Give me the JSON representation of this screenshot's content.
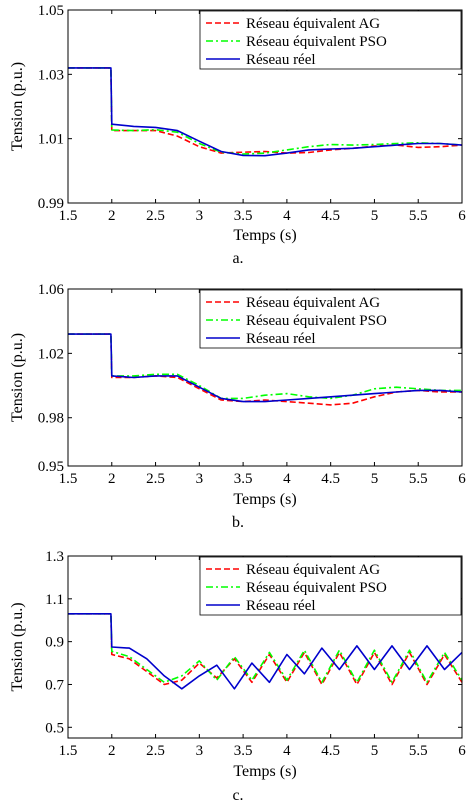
{
  "panels": [
    {
      "caption": "a.",
      "chart_data": {
        "type": "line",
        "xlabel": "Temps (s)",
        "ylabel": "Tension (p.u.)",
        "xlim": [
          1.5,
          6
        ],
        "ylim": [
          0.99,
          1.05
        ],
        "xticks": [
          "1.5",
          "2",
          "2.5",
          "3",
          "3.5",
          "4",
          "4.5",
          "5",
          "5.5",
          "6"
        ],
        "yticks": [
          "0.99",
          "1.01",
          "1.03",
          "1.05"
        ],
        "legend_position": "top-right",
        "grid": false,
        "series": [
          {
            "name": "Réseau équivalent AG",
            "color": "#ff0000",
            "style": "dashed",
            "x": [
              1.5,
              1.99,
              2.0,
              2.25,
              2.5,
              2.75,
              3.0,
              3.25,
              3.5,
              3.75,
              4.0,
              4.25,
              4.5,
              4.75,
              5.0,
              5.25,
              5.5,
              5.75,
              6.0
            ],
            "y": [
              1.032,
              1.032,
              1.0125,
              1.0125,
              1.0125,
              1.0108,
              1.0075,
              1.0055,
              1.0058,
              1.006,
              1.0055,
              1.0057,
              1.0065,
              1.007,
              1.0077,
              1.008,
              1.0073,
              1.0075,
              1.008
            ]
          },
          {
            "name": "Réseau équivalent PSO",
            "color": "#00ff00",
            "style": "dashdot",
            "x": [
              1.5,
              1.99,
              2.0,
              2.25,
              2.5,
              2.75,
              3.0,
              3.25,
              3.5,
              3.75,
              4.0,
              4.25,
              4.5,
              4.75,
              5.0,
              5.25,
              5.5,
              5.75,
              6.0
            ],
            "y": [
              1.032,
              1.032,
              1.0127,
              1.0125,
              1.0128,
              1.012,
              1.0085,
              1.0058,
              1.0052,
              1.0055,
              1.0065,
              1.0075,
              1.0082,
              1.008,
              1.0082,
              1.0085,
              1.0087,
              1.0085,
              1.008
            ]
          },
          {
            "name": "Réseau réel",
            "color": "#0000cc",
            "style": "solid",
            "x": [
              1.5,
              1.99,
              2.0,
              2.25,
              2.5,
              2.75,
              3.0,
              3.25,
              3.5,
              3.75,
              4.0,
              4.25,
              4.5,
              4.75,
              5.0,
              5.25,
              5.5,
              5.75,
              6.0
            ],
            "y": [
              1.032,
              1.032,
              1.0145,
              1.0138,
              1.0135,
              1.0125,
              1.0092,
              1.006,
              1.0048,
              1.0047,
              1.0055,
              1.0065,
              1.0068,
              1.007,
              1.0075,
              1.008,
              1.0085,
              1.0085,
              1.008
            ]
          }
        ]
      }
    },
    {
      "caption": "b.",
      "chart_data": {
        "type": "line",
        "xlabel": "Temps (s)",
        "ylabel": "Tension (p.u.)",
        "xlim": [
          1.5,
          6
        ],
        "ylim": [
          0.95,
          1.06
        ],
        "xticks": [
          "1.5",
          "2",
          "2.5",
          "3",
          "3.5",
          "4",
          "4.5",
          "5",
          "5.5",
          "6"
        ],
        "yticks": [
          "0.95",
          "0.98",
          "1.02",
          "1.06"
        ],
        "legend_position": "top-right",
        "grid": false,
        "series": [
          {
            "name": "Réseau équivalent AG",
            "color": "#ff0000",
            "style": "dashed",
            "x": [
              1.5,
              1.99,
              2.0,
              2.25,
              2.5,
              2.75,
              3.0,
              3.25,
              3.5,
              3.75,
              4.0,
              4.25,
              4.5,
              4.75,
              5.0,
              5.25,
              5.5,
              5.75,
              6.0
            ],
            "y": [
              1.032,
              1.032,
              1.005,
              1.005,
              1.006,
              1.005,
              0.998,
              0.991,
              0.99,
              0.991,
              0.99,
              0.989,
              0.988,
              0.989,
              0.993,
              0.996,
              0.997,
              0.996,
              0.996
            ]
          },
          {
            "name": "Réseau équivalent PSO",
            "color": "#00ff00",
            "style": "dashdot",
            "x": [
              1.5,
              1.99,
              2.0,
              2.25,
              2.5,
              2.75,
              3.0,
              3.25,
              3.5,
              3.75,
              4.0,
              4.25,
              4.5,
              4.75,
              5.0,
              5.25,
              5.5,
              5.75,
              6.0
            ],
            "y": [
              1.032,
              1.032,
              1.006,
              1.006,
              1.007,
              1.007,
              1.0,
              0.992,
              0.992,
              0.994,
              0.995,
              0.993,
              0.992,
              0.994,
              0.998,
              0.999,
              0.998,
              0.997,
              0.997
            ]
          },
          {
            "name": "Réseau réel",
            "color": "#0000cc",
            "style": "solid",
            "x": [
              1.5,
              1.99,
              2.0,
              2.25,
              2.5,
              2.75,
              3.0,
              3.25,
              3.5,
              3.75,
              4.0,
              4.25,
              4.5,
              4.75,
              5.0,
              5.25,
              5.5,
              5.75,
              6.0
            ],
            "y": [
              1.032,
              1.032,
              1.006,
              1.005,
              1.006,
              1.006,
              0.999,
              0.992,
              0.99,
              0.99,
              0.991,
              0.992,
              0.993,
              0.994,
              0.995,
              0.996,
              0.997,
              0.997,
              0.996
            ]
          }
        ]
      }
    },
    {
      "caption": "c.",
      "chart_data": {
        "type": "line",
        "xlabel": "Temps (s)",
        "ylabel": "Tension (p.u.)",
        "xlim": [
          1.5,
          6
        ],
        "ylim": [
          0.45,
          1.3
        ],
        "xticks": [
          "1.5",
          "2",
          "2.5",
          "3",
          "3.5",
          "4",
          "4.5",
          "5",
          "5.5",
          "6"
        ],
        "yticks": [
          "0.5",
          "0.7",
          "0.9",
          "1.1",
          "1.3"
        ],
        "legend_position": "top-right",
        "grid": false,
        "series": [
          {
            "name": "Réseau équivalent AG",
            "color": "#ff0000",
            "style": "dashed",
            "x": [
              1.5,
              1.99,
              2.0,
              2.2,
              2.4,
              2.6,
              2.8,
              3.0,
              3.2,
              3.4,
              3.6,
              3.8,
              4.0,
              4.2,
              4.4,
              4.6,
              4.8,
              5.0,
              5.2,
              5.4,
              5.6,
              5.8,
              6.0
            ],
            "y": [
              1.03,
              1.03,
              0.84,
              0.82,
              0.76,
              0.7,
              0.72,
              0.8,
              0.73,
              0.82,
              0.71,
              0.84,
              0.71,
              0.85,
              0.7,
              0.85,
              0.7,
              0.85,
              0.7,
              0.85,
              0.7,
              0.84,
              0.71
            ]
          },
          {
            "name": "Réseau équivalent PSO",
            "color": "#00ff00",
            "style": "dashdot",
            "x": [
              1.5,
              1.99,
              2.0,
              2.2,
              2.4,
              2.6,
              2.8,
              3.0,
              3.2,
              3.4,
              3.6,
              3.8,
              4.0,
              4.2,
              4.4,
              4.6,
              4.8,
              5.0,
              5.2,
              5.4,
              5.6,
              5.8,
              6.0
            ],
            "y": [
              1.03,
              1.03,
              0.855,
              0.83,
              0.77,
              0.71,
              0.74,
              0.81,
              0.72,
              0.83,
              0.72,
              0.85,
              0.72,
              0.86,
              0.71,
              0.86,
              0.71,
              0.86,
              0.71,
              0.86,
              0.71,
              0.85,
              0.72
            ]
          },
          {
            "name": "Réseau réel",
            "color": "#0000cc",
            "style": "solid",
            "x": [
              1.5,
              1.99,
              2.0,
              2.2,
              2.4,
              2.6,
              2.8,
              3.0,
              3.2,
              3.4,
              3.6,
              3.8,
              4.0,
              4.2,
              4.4,
              4.6,
              4.8,
              5.0,
              5.2,
              5.4,
              5.6,
              5.8,
              6.0
            ],
            "y": [
              1.03,
              1.03,
              0.875,
              0.87,
              0.82,
              0.74,
              0.68,
              0.74,
              0.79,
              0.68,
              0.8,
              0.71,
              0.84,
              0.75,
              0.87,
              0.77,
              0.88,
              0.77,
              0.88,
              0.77,
              0.88,
              0.77,
              0.85
            ]
          }
        ]
      }
    }
  ]
}
